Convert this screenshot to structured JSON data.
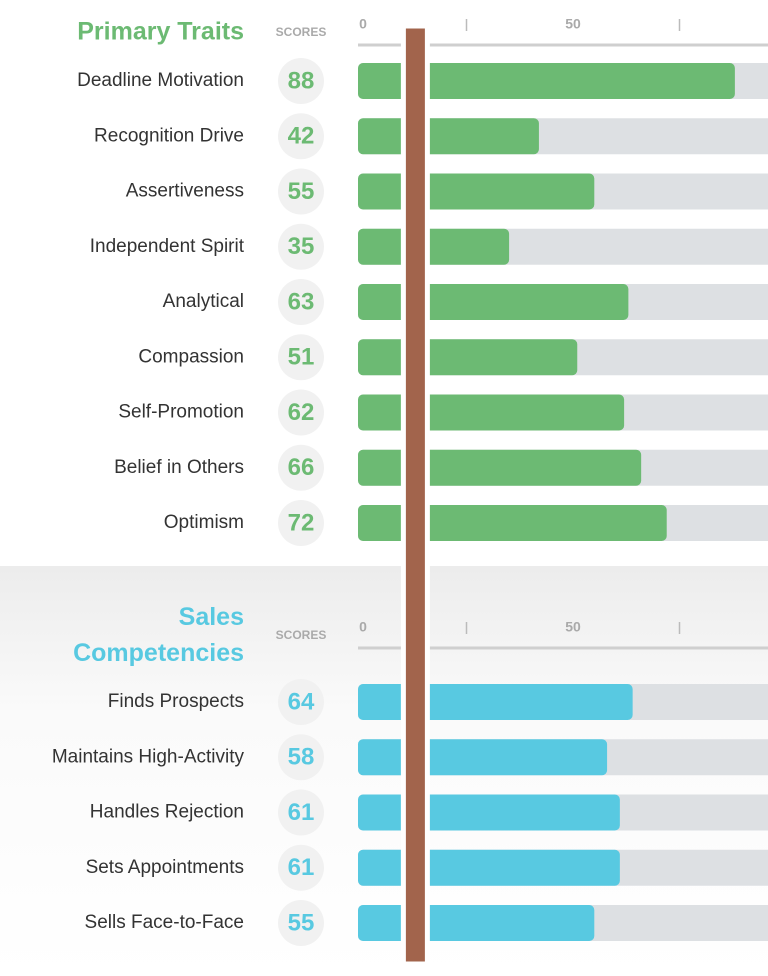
{
  "chart_data": [
    {
      "type": "bar",
      "orientation": "horizontal",
      "title": "Primary Traits",
      "score_header": "SCORES",
      "color": "#6cba73",
      "categories": [
        "Deadline Motivation",
        "Recognition Drive",
        "Assertiveness",
        "Independent Spirit",
        "Analytical",
        "Compassion",
        "Self-Promotion",
        "Belief in Others",
        "Optimism"
      ],
      "values": [
        88,
        42,
        55,
        35,
        63,
        51,
        62,
        66,
        72
      ],
      "xlim": [
        0,
        100
      ],
      "xticks": [
        0,
        50
      ],
      "minor_xticks": [
        25,
        75
      ]
    },
    {
      "type": "bar",
      "orientation": "horizontal",
      "title": "Sales Competencies",
      "score_header": "SCORES",
      "color": "#58c9e1",
      "categories": [
        "Finds Prospects",
        "Maintains High-Activity",
        "Handles Rejection",
        "Sets Appointments",
        "Sells Face-to-Face"
      ],
      "values": [
        64,
        58,
        61,
        61,
        55
      ],
      "xlim": [
        0,
        100
      ],
      "xticks": [
        0,
        50
      ],
      "minor_xticks": [
        25,
        75
      ]
    }
  ],
  "reference_line": {
    "value": 13,
    "color": "#a2644c"
  }
}
